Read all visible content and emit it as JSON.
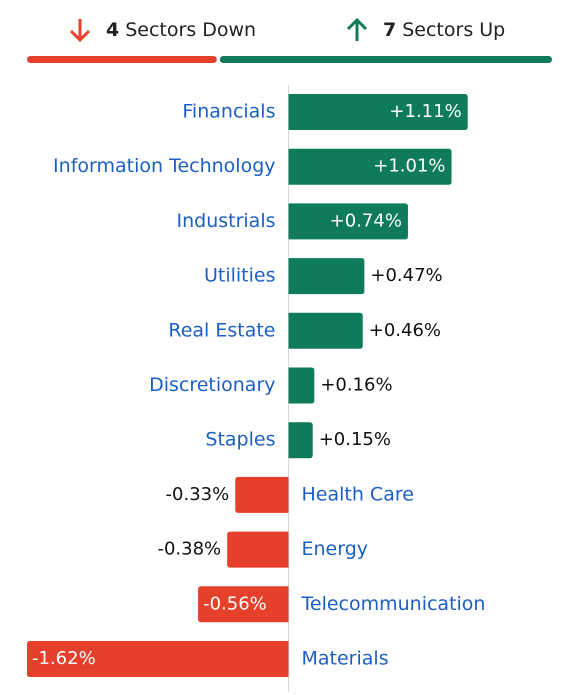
{
  "summary": {
    "down_count": 4,
    "down_label": "Sectors Down",
    "up_count": 7,
    "up_label": "Sectors Up"
  },
  "chart_data": {
    "type": "bar",
    "orientation": "horizontal",
    "categories": [
      "Financials",
      "Information Technology",
      "Industrials",
      "Utilities",
      "Real Estate",
      "Discretionary",
      "Staples",
      "Health Care",
      "Energy",
      "Telecommunication",
      "Materials"
    ],
    "values": [
      1.11,
      1.01,
      0.74,
      0.47,
      0.46,
      0.16,
      0.15,
      -0.33,
      -0.38,
      -0.56,
      -1.62
    ],
    "value_labels": [
      "+1.11%",
      "+1.01%",
      "+0.74%",
      "+0.47%",
      "+0.46%",
      "+0.16%",
      "+0.15%",
      "-0.33%",
      "-0.38%",
      "-0.56%",
      "-1.62%"
    ],
    "positive_color": "#107b5a",
    "negative_color": "#e5402b"
  }
}
